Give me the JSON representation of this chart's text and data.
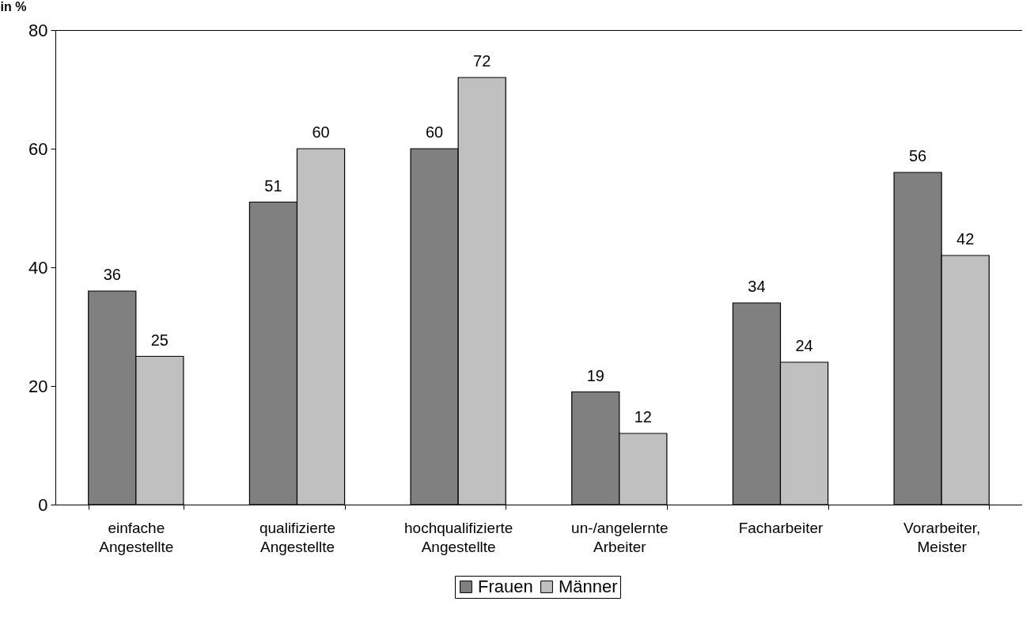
{
  "chart_data": {
    "type": "bar",
    "ylabel": "in %",
    "categories": [
      "einfache Angestellte",
      "qualifizierte Angestellte",
      "hochqualifizierte Angestellte",
      "un-/angelernte Arbeiter",
      "Facharbeiter",
      "Vorarbeiter, Meister"
    ],
    "series": [
      {
        "name": "Frauen",
        "color": "#808080",
        "values": [
          36,
          51,
          60,
          19,
          34,
          56
        ]
      },
      {
        "name": "Männer",
        "color": "#c0c0c0",
        "values": [
          25,
          60,
          72,
          12,
          24,
          42
        ]
      }
    ],
    "ylim": [
      0,
      80
    ],
    "yticks": [
      0,
      20,
      40,
      60,
      80
    ],
    "grid": false,
    "legend": "bottom",
    "data_labels": true
  }
}
